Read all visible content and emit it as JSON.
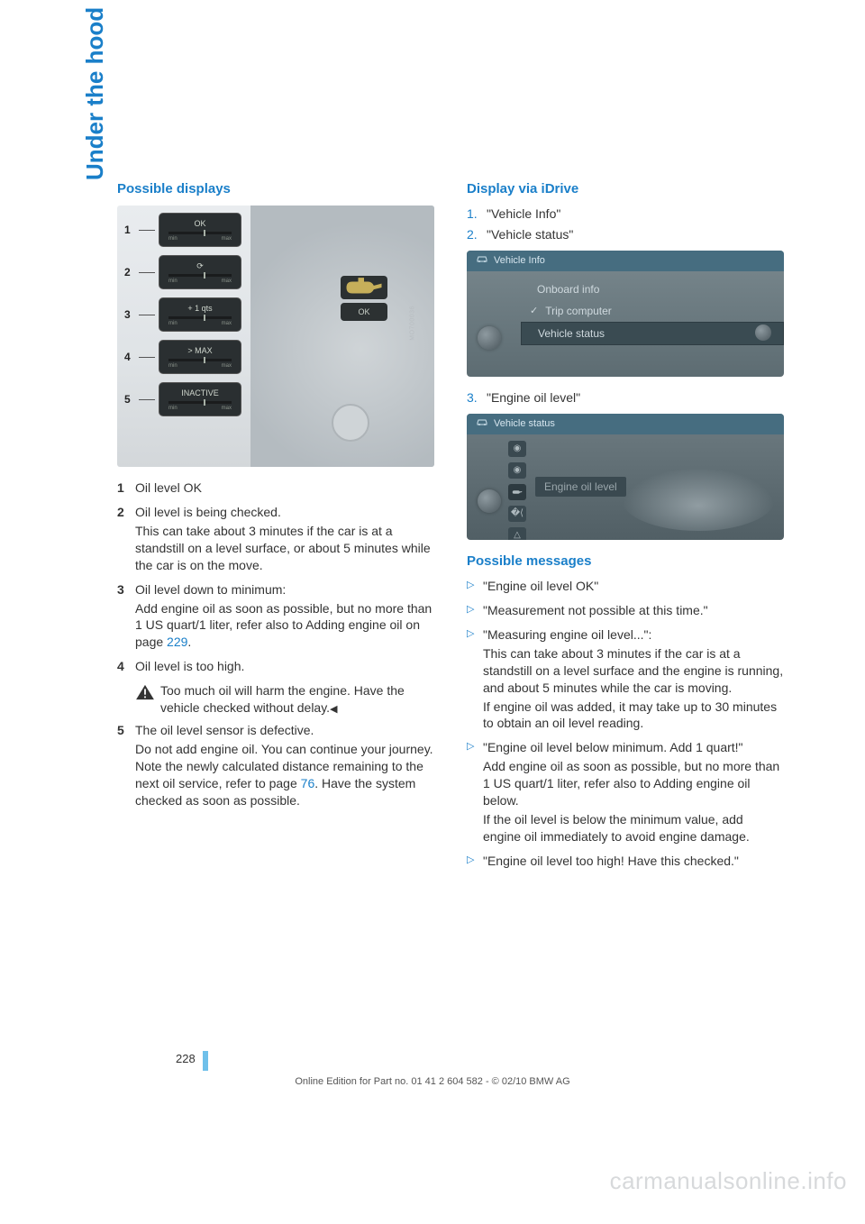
{
  "side_tab": "Under the hood",
  "left": {
    "heading": "Possible displays",
    "gauges": [
      {
        "n": "1",
        "label": "OK"
      },
      {
        "n": "2",
        "label": "⟳"
      },
      {
        "n": "3",
        "label": "+ 1 qts"
      },
      {
        "n": "4",
        "label": "> MAX"
      },
      {
        "n": "5",
        "label": "INACTIVE"
      }
    ],
    "gauge_min": "min",
    "gauge_max": "max",
    "ok_badge": "OK",
    "img_code": "MO700036",
    "items": [
      {
        "n": "1",
        "lines": [
          "Oil level OK"
        ]
      },
      {
        "n": "2",
        "lines": [
          "Oil level is being checked.",
          "This can take about 3 minutes if the car is at a standstill on a level surface, or about 5 minutes while the car is on the move."
        ]
      },
      {
        "n": "3",
        "lines": [
          "Oil level down to minimum:",
          "Add engine oil as soon as possible, but no more than 1 US quart/1 liter, refer also to Adding engine oil on page "
        ],
        "link": "229",
        "link_after": "."
      },
      {
        "n": "4",
        "lines": [
          "Oil level is too high."
        ]
      },
      {
        "n": "5",
        "lines": [
          "The oil level sensor is defective.",
          "Do not add engine oil. You can continue your journey. Note the newly calculated distance remaining to the next oil service, refer to page "
        ],
        "link": "76",
        "link_after": ". Have the system checked as soon as possible."
      }
    ],
    "warning": "Too much oil will harm the engine. Have the vehicle checked without delay."
  },
  "right": {
    "heading": "Display via iDrive",
    "steps_a": [
      {
        "n": "1.",
        "t": "\"Vehicle Info\""
      },
      {
        "n": "2.",
        "t": "\"Vehicle status\""
      }
    ],
    "ss1": {
      "header": "Vehicle Info",
      "rows": [
        {
          "t": "Onboard info",
          "sel": false,
          "check": false
        },
        {
          "t": "Trip computer",
          "sel": false,
          "check": true
        },
        {
          "t": "Vehicle status",
          "sel": true,
          "check": false
        }
      ]
    },
    "step3": {
      "n": "3.",
      "t": "\"Engine oil level\""
    },
    "ss2": {
      "header": "Vehicle status",
      "label": "Engine oil level"
    },
    "msg_heading": "Possible messages",
    "messages": [
      {
        "lines": [
          "\"Engine oil level OK\""
        ]
      },
      {
        "lines": [
          "\"Measurement not possible at this time.\""
        ]
      },
      {
        "lines": [
          "\"Measuring engine oil level...\":",
          "This can take about 3 minutes if the car is at a standstill on a level surface and the engine is running, and about 5 minutes while the car is moving.",
          "If engine oil was added, it may take up to 30 minutes to obtain an oil level reading."
        ]
      },
      {
        "lines": [
          "\"Engine oil level below minimum. Add 1 quart!\"",
          "Add engine oil as soon as possible, but no more than 1 US quart/1 liter, refer also to Adding engine oil below.",
          "If the oil level is below the minimum value, add engine oil immediately to avoid engine damage."
        ]
      },
      {
        "lines": [
          "\"Engine oil level too high! Have this checked.\""
        ]
      }
    ]
  },
  "page_number": "228",
  "footer": "Online Edition for Part no. 01 41 2 604 582 - © 02/10 BMW AG",
  "watermark": "carmanualsonline.info"
}
